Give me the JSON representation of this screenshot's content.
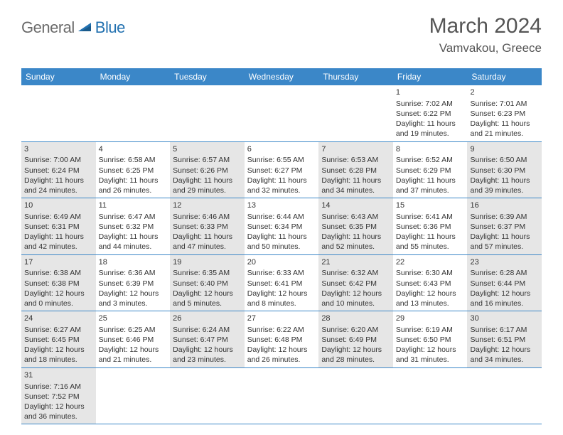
{
  "logo": {
    "general": "General",
    "blue": "Blue"
  },
  "title": {
    "monthYear": "March 2024",
    "location": "Vamvakou, Greece"
  },
  "colors": {
    "headerBg": "#3b87c8",
    "headerText": "#ffffff",
    "shade": "#e6e6e6",
    "rowBorder": "#3b87c8",
    "textGray": "#555555",
    "logoGray": "#6b6b6b",
    "logoBlue": "#2271b0"
  },
  "dayNames": [
    "Sunday",
    "Monday",
    "Tuesday",
    "Wednesday",
    "Thursday",
    "Friday",
    "Saturday"
  ],
  "weeks": [
    [
      {
        "empty": true
      },
      {
        "empty": true
      },
      {
        "empty": true
      },
      {
        "empty": true
      },
      {
        "empty": true
      },
      {
        "num": "1",
        "sunrise": "Sunrise: 7:02 AM",
        "sunset": "Sunset: 6:22 PM",
        "daylight": "Daylight: 11 hours and 19 minutes."
      },
      {
        "num": "2",
        "sunrise": "Sunrise: 7:01 AM",
        "sunset": "Sunset: 6:23 PM",
        "daylight": "Daylight: 11 hours and 21 minutes."
      }
    ],
    [
      {
        "num": "3",
        "sunrise": "Sunrise: 7:00 AM",
        "sunset": "Sunset: 6:24 PM",
        "daylight": "Daylight: 11 hours and 24 minutes.",
        "shaded": true
      },
      {
        "num": "4",
        "sunrise": "Sunrise: 6:58 AM",
        "sunset": "Sunset: 6:25 PM",
        "daylight": "Daylight: 11 hours and 26 minutes."
      },
      {
        "num": "5",
        "sunrise": "Sunrise: 6:57 AM",
        "sunset": "Sunset: 6:26 PM",
        "daylight": "Daylight: 11 hours and 29 minutes.",
        "shaded": true
      },
      {
        "num": "6",
        "sunrise": "Sunrise: 6:55 AM",
        "sunset": "Sunset: 6:27 PM",
        "daylight": "Daylight: 11 hours and 32 minutes."
      },
      {
        "num": "7",
        "sunrise": "Sunrise: 6:53 AM",
        "sunset": "Sunset: 6:28 PM",
        "daylight": "Daylight: 11 hours and 34 minutes.",
        "shaded": true
      },
      {
        "num": "8",
        "sunrise": "Sunrise: 6:52 AM",
        "sunset": "Sunset: 6:29 PM",
        "daylight": "Daylight: 11 hours and 37 minutes."
      },
      {
        "num": "9",
        "sunrise": "Sunrise: 6:50 AM",
        "sunset": "Sunset: 6:30 PM",
        "daylight": "Daylight: 11 hours and 39 minutes.",
        "shaded": true
      }
    ],
    [
      {
        "num": "10",
        "sunrise": "Sunrise: 6:49 AM",
        "sunset": "Sunset: 6:31 PM",
        "daylight": "Daylight: 11 hours and 42 minutes.",
        "shaded": true
      },
      {
        "num": "11",
        "sunrise": "Sunrise: 6:47 AM",
        "sunset": "Sunset: 6:32 PM",
        "daylight": "Daylight: 11 hours and 44 minutes."
      },
      {
        "num": "12",
        "sunrise": "Sunrise: 6:46 AM",
        "sunset": "Sunset: 6:33 PM",
        "daylight": "Daylight: 11 hours and 47 minutes.",
        "shaded": true
      },
      {
        "num": "13",
        "sunrise": "Sunrise: 6:44 AM",
        "sunset": "Sunset: 6:34 PM",
        "daylight": "Daylight: 11 hours and 50 minutes."
      },
      {
        "num": "14",
        "sunrise": "Sunrise: 6:43 AM",
        "sunset": "Sunset: 6:35 PM",
        "daylight": "Daylight: 11 hours and 52 minutes.",
        "shaded": true
      },
      {
        "num": "15",
        "sunrise": "Sunrise: 6:41 AM",
        "sunset": "Sunset: 6:36 PM",
        "daylight": "Daylight: 11 hours and 55 minutes."
      },
      {
        "num": "16",
        "sunrise": "Sunrise: 6:39 AM",
        "sunset": "Sunset: 6:37 PM",
        "daylight": "Daylight: 11 hours and 57 minutes.",
        "shaded": true
      }
    ],
    [
      {
        "num": "17",
        "sunrise": "Sunrise: 6:38 AM",
        "sunset": "Sunset: 6:38 PM",
        "daylight": "Daylight: 12 hours and 0 minutes.",
        "shaded": true
      },
      {
        "num": "18",
        "sunrise": "Sunrise: 6:36 AM",
        "sunset": "Sunset: 6:39 PM",
        "daylight": "Daylight: 12 hours and 3 minutes."
      },
      {
        "num": "19",
        "sunrise": "Sunrise: 6:35 AM",
        "sunset": "Sunset: 6:40 PM",
        "daylight": "Daylight: 12 hours and 5 minutes.",
        "shaded": true
      },
      {
        "num": "20",
        "sunrise": "Sunrise: 6:33 AM",
        "sunset": "Sunset: 6:41 PM",
        "daylight": "Daylight: 12 hours and 8 minutes."
      },
      {
        "num": "21",
        "sunrise": "Sunrise: 6:32 AM",
        "sunset": "Sunset: 6:42 PM",
        "daylight": "Daylight: 12 hours and 10 minutes.",
        "shaded": true
      },
      {
        "num": "22",
        "sunrise": "Sunrise: 6:30 AM",
        "sunset": "Sunset: 6:43 PM",
        "daylight": "Daylight: 12 hours and 13 minutes."
      },
      {
        "num": "23",
        "sunrise": "Sunrise: 6:28 AM",
        "sunset": "Sunset: 6:44 PM",
        "daylight": "Daylight: 12 hours and 16 minutes.",
        "shaded": true
      }
    ],
    [
      {
        "num": "24",
        "sunrise": "Sunrise: 6:27 AM",
        "sunset": "Sunset: 6:45 PM",
        "daylight": "Daylight: 12 hours and 18 minutes.",
        "shaded": true
      },
      {
        "num": "25",
        "sunrise": "Sunrise: 6:25 AM",
        "sunset": "Sunset: 6:46 PM",
        "daylight": "Daylight: 12 hours and 21 minutes."
      },
      {
        "num": "26",
        "sunrise": "Sunrise: 6:24 AM",
        "sunset": "Sunset: 6:47 PM",
        "daylight": "Daylight: 12 hours and 23 minutes.",
        "shaded": true
      },
      {
        "num": "27",
        "sunrise": "Sunrise: 6:22 AM",
        "sunset": "Sunset: 6:48 PM",
        "daylight": "Daylight: 12 hours and 26 minutes."
      },
      {
        "num": "28",
        "sunrise": "Sunrise: 6:20 AM",
        "sunset": "Sunset: 6:49 PM",
        "daylight": "Daylight: 12 hours and 28 minutes.",
        "shaded": true
      },
      {
        "num": "29",
        "sunrise": "Sunrise: 6:19 AM",
        "sunset": "Sunset: 6:50 PM",
        "daylight": "Daylight: 12 hours and 31 minutes."
      },
      {
        "num": "30",
        "sunrise": "Sunrise: 6:17 AM",
        "sunset": "Sunset: 6:51 PM",
        "daylight": "Daylight: 12 hours and 34 minutes.",
        "shaded": true
      }
    ],
    [
      {
        "num": "31",
        "sunrise": "Sunrise: 7:16 AM",
        "sunset": "Sunset: 7:52 PM",
        "daylight": "Daylight: 12 hours and 36 minutes.",
        "shaded": true
      },
      {
        "empty": true
      },
      {
        "empty": true
      },
      {
        "empty": true
      },
      {
        "empty": true
      },
      {
        "empty": true
      },
      {
        "empty": true
      }
    ]
  ]
}
